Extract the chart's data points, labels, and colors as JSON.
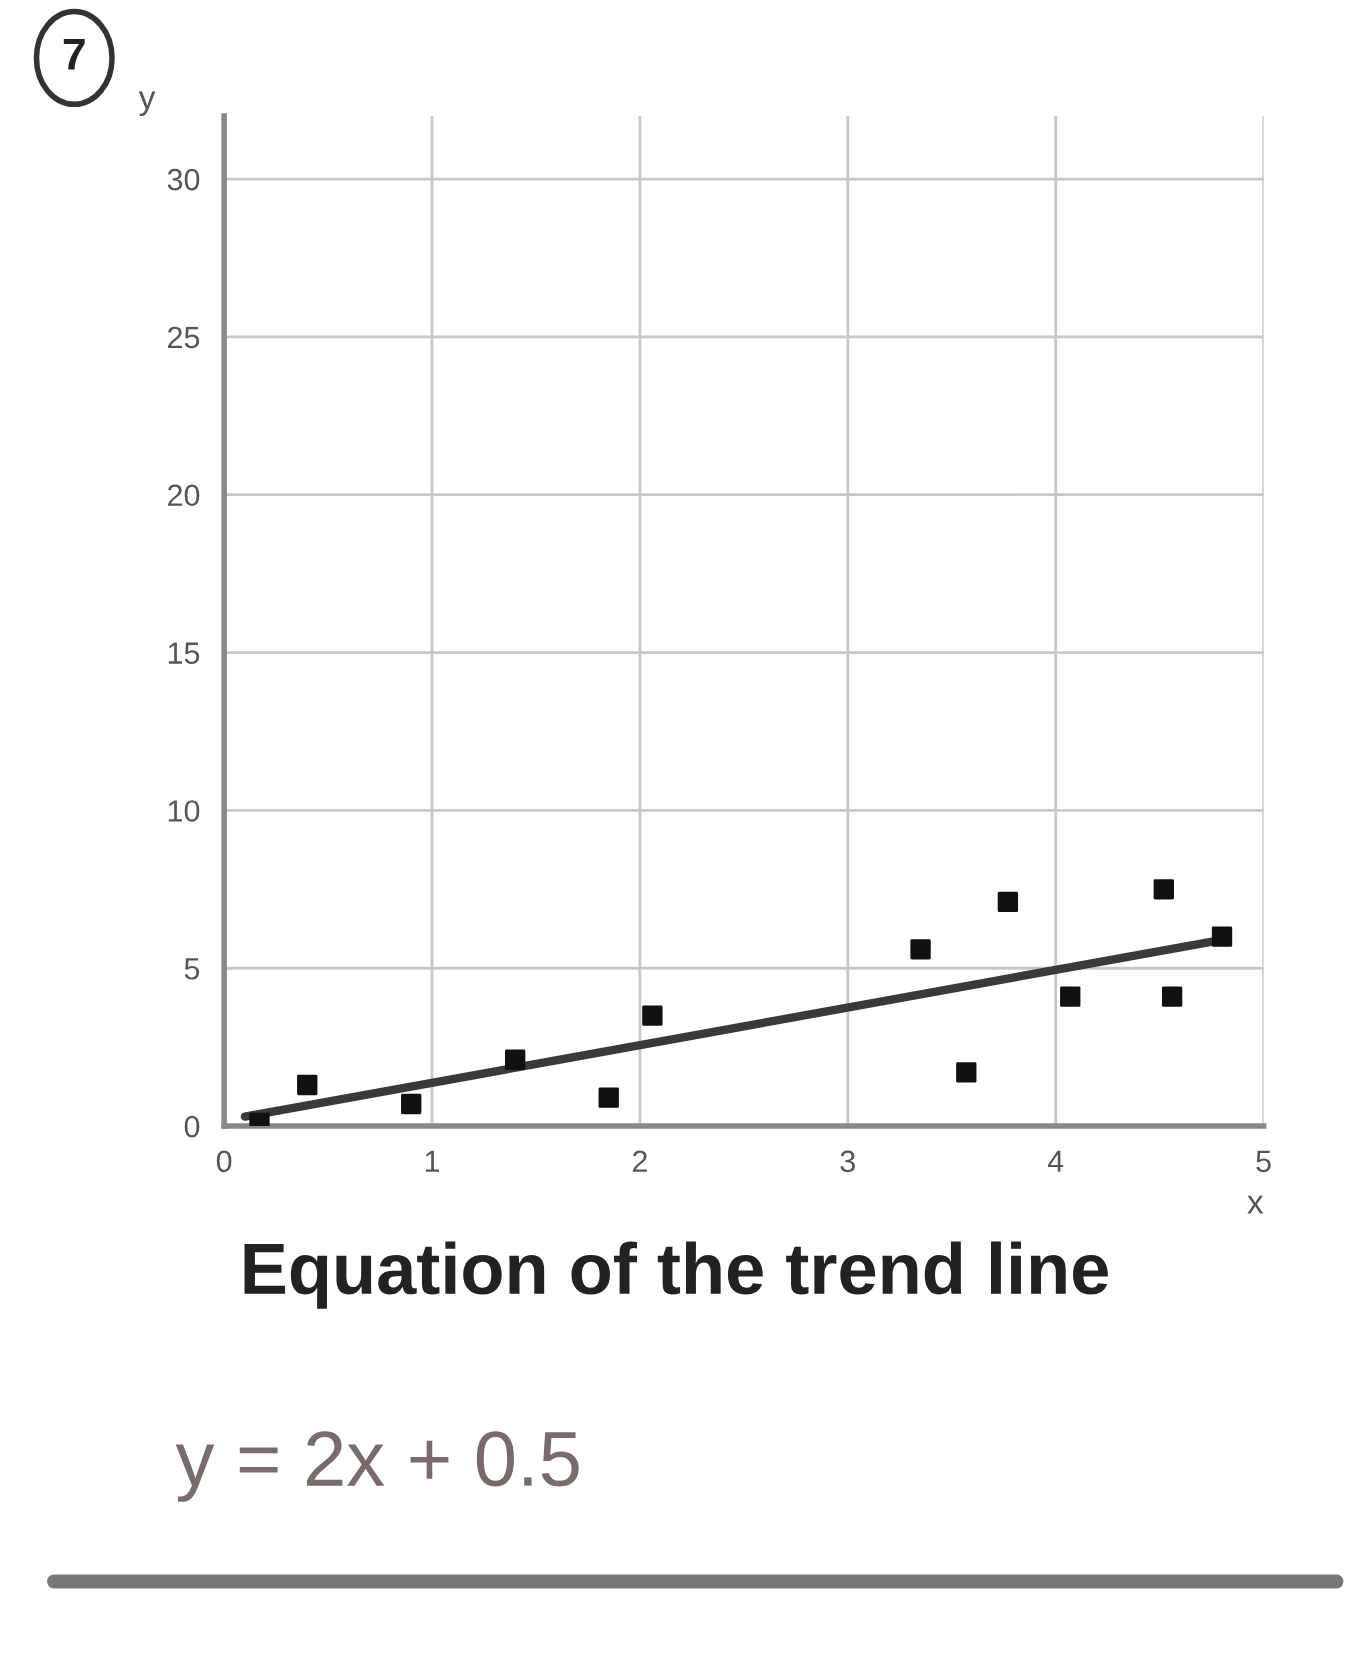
{
  "chart_data": {
    "type": "scatter",
    "xlabel": "x",
    "ylabel": "y",
    "xlim": [
      0,
      5
    ],
    "xticks": [
      0,
      1,
      2,
      3,
      4,
      5
    ],
    "ylim": [
      0,
      32
    ],
    "yticks": [
      0,
      5,
      10,
      15,
      20,
      25,
      30
    ],
    "grid": true,
    "series": [
      {
        "marker": "square",
        "color": "#111111",
        "x": [
          0.17,
          0.4,
          0.9,
          1.4,
          1.85,
          2.06,
          3.35,
          3.57,
          3.77,
          4.07,
          4.52,
          4.56,
          4.8
        ],
        "values": [
          0.1,
          1.3,
          0.7,
          2.1,
          0.9,
          3.5,
          5.6,
          1.7,
          7.1,
          4.1,
          7.5,
          4.1,
          6.0
        ]
      },
      {
        "type": "line",
        "color": "#3a3a3a",
        "x": [
          0.1,
          4.8
        ],
        "values": [
          0.3,
          5.9
        ]
      }
    ],
    "annotations": [
      "7",
      "Equation of the trend line",
      "y = 2x + 0.5"
    ]
  }
}
